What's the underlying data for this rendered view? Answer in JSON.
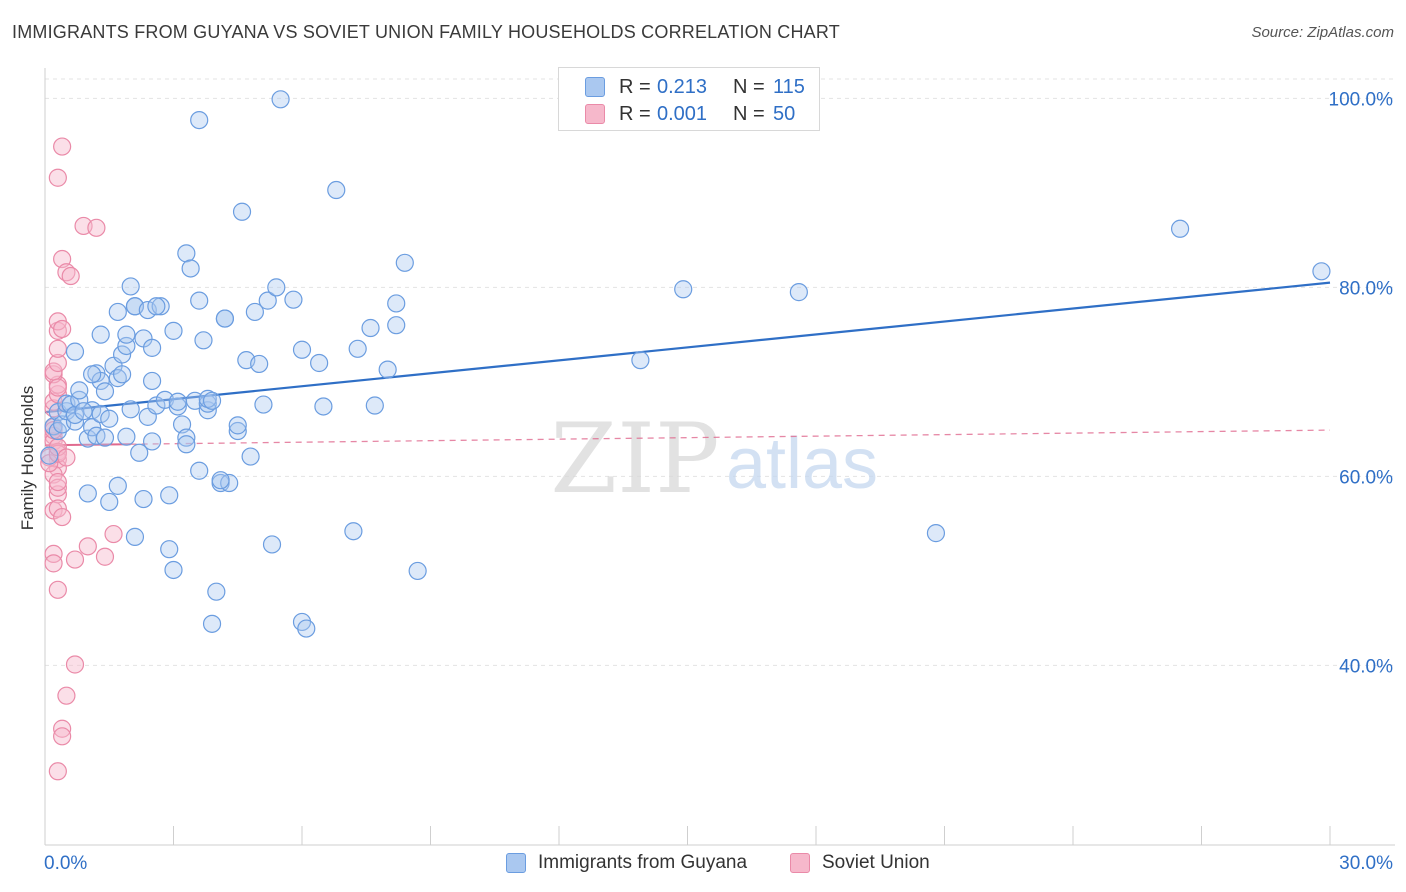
{
  "title": "IMMIGRANTS FROM GUYANA VS SOVIET UNION FAMILY HOUSEHOLDS CORRELATION CHART",
  "source": "Source: ZipAtlas.com",
  "watermark": {
    "zip": "ZIP",
    "atlas": "atlas"
  },
  "legend": {
    "r_label": "R =",
    "n_label": "N =",
    "series1": {
      "r": "0.213",
      "n": "115"
    },
    "series2": {
      "r": "0.001",
      "n": "50"
    }
  },
  "bottom_legend": {
    "series1": "Immigrants from Guyana",
    "series2": "Soviet Union"
  },
  "colors": {
    "series1_fill": "#aac8f0",
    "series1_stroke": "#6b9de0",
    "series1_line": "#2f6fc6",
    "series2_fill": "#f6b8cb",
    "series2_stroke": "#ea8aa8",
    "series2_line": "#e06a8f",
    "axis_text": "#2f6fc6",
    "grid": "#e3e3e3"
  },
  "chart_data": {
    "type": "scatter",
    "title": "IMMIGRANTS FROM GUYANA VS SOVIET UNION FAMILY HOUSEHOLDS CORRELATION CHART",
    "xlabel": "",
    "ylabel": "Family Households",
    "xlim": [
      0,
      30
    ],
    "ylim": [
      21,
      103
    ],
    "x_tick_labels": [
      "0.0%",
      "30.0%"
    ],
    "y_ticks": [
      40,
      60,
      80,
      100
    ],
    "y_tick_labels": [
      "40.0%",
      "60.0%",
      "80.0%",
      "100.0%"
    ],
    "grid": true,
    "legend_position": "top-center",
    "series": [
      {
        "name": "Immigrants from Guyana",
        "r": 0.213,
        "n": 115,
        "trend": {
          "x": [
            0,
            30
          ],
          "y": [
            66.8,
            80.5
          ],
          "style": "solid"
        },
        "points": [
          [
            0.1,
            62.2
          ],
          [
            0.2,
            65.3
          ],
          [
            0.3,
            66.8
          ],
          [
            0.3,
            64.8
          ],
          [
            0.4,
            65.5
          ],
          [
            0.5,
            66.9
          ],
          [
            0.5,
            67.7
          ],
          [
            0.6,
            67.6
          ],
          [
            0.7,
            65.8
          ],
          [
            0.7,
            66.5
          ],
          [
            0.8,
            68.1
          ],
          [
            0.8,
            69.1
          ],
          [
            0.7,
            73.2
          ],
          [
            1.0,
            64.0
          ],
          [
            1.0,
            58.2
          ],
          [
            1.1,
            65.2
          ],
          [
            1.1,
            67.0
          ],
          [
            1.2,
            64.3
          ],
          [
            1.2,
            70.9
          ],
          [
            1.3,
            70.1
          ],
          [
            1.3,
            66.6
          ],
          [
            1.3,
            75.0
          ],
          [
            1.4,
            69.0
          ],
          [
            1.5,
            66.1
          ],
          [
            1.5,
            57.3
          ],
          [
            1.6,
            71.7
          ],
          [
            1.7,
            70.4
          ],
          [
            1.7,
            77.4
          ],
          [
            1.7,
            59.0
          ],
          [
            1.8,
            72.9
          ],
          [
            1.8,
            70.8
          ],
          [
            1.9,
            73.8
          ],
          [
            1.9,
            75.0
          ],
          [
            1.9,
            64.2
          ],
          [
            2.0,
            80.1
          ],
          [
            2.0,
            67.1
          ],
          [
            2.1,
            78.0
          ],
          [
            2.1,
            53.6
          ],
          [
            2.1,
            78.0
          ],
          [
            2.2,
            62.5
          ],
          [
            2.3,
            57.6
          ],
          [
            2.3,
            74.6
          ],
          [
            2.4,
            77.6
          ],
          [
            2.4,
            66.3
          ],
          [
            2.5,
            70.1
          ],
          [
            2.5,
            73.6
          ],
          [
            2.5,
            63.7
          ],
          [
            2.6,
            67.5
          ],
          [
            2.7,
            78.0
          ],
          [
            2.8,
            68.1
          ],
          [
            2.9,
            58.0
          ],
          [
            2.9,
            52.3
          ],
          [
            3.0,
            50.1
          ],
          [
            3.0,
            75.4
          ],
          [
            3.1,
            67.4
          ],
          [
            3.1,
            67.9
          ],
          [
            3.2,
            65.5
          ],
          [
            3.3,
            64.1
          ],
          [
            3.3,
            63.4
          ],
          [
            3.3,
            83.6
          ],
          [
            3.4,
            82.0
          ],
          [
            3.5,
            68.0
          ],
          [
            3.6,
            78.6
          ],
          [
            3.6,
            60.6
          ],
          [
            3.6,
            97.7
          ],
          [
            3.7,
            74.4
          ],
          [
            3.8,
            67.0
          ],
          [
            3.8,
            67.7
          ],
          [
            3.8,
            68.2
          ],
          [
            3.9,
            44.4
          ],
          [
            4.0,
            47.8
          ],
          [
            4.1,
            59.3
          ],
          [
            4.2,
            76.7
          ],
          [
            4.2,
            76.7
          ],
          [
            4.3,
            59.3
          ],
          [
            4.5,
            64.8
          ],
          [
            4.5,
            65.4
          ],
          [
            4.6,
            88.0
          ],
          [
            4.7,
            72.3
          ],
          [
            4.8,
            62.1
          ],
          [
            4.9,
            77.4
          ],
          [
            5.0,
            71.9
          ],
          [
            5.1,
            67.6
          ],
          [
            5.2,
            78.6
          ],
          [
            5.3,
            52.8
          ],
          [
            5.4,
            80.0
          ],
          [
            5.5,
            99.9
          ],
          [
            5.8,
            78.7
          ],
          [
            6.0,
            44.6
          ],
          [
            6.0,
            73.4
          ],
          [
            6.1,
            43.9
          ],
          [
            6.4,
            72.0
          ],
          [
            6.5,
            67.4
          ],
          [
            6.8,
            90.3
          ],
          [
            7.2,
            54.2
          ],
          [
            7.3,
            73.5
          ],
          [
            7.6,
            75.7
          ],
          [
            7.7,
            67.5
          ],
          [
            8.0,
            71.3
          ],
          [
            8.2,
            76.0
          ],
          [
            8.2,
            78.3
          ],
          [
            8.4,
            82.6
          ],
          [
            8.7,
            50.0
          ],
          [
            13.9,
            72.3
          ],
          [
            14.9,
            79.8
          ],
          [
            17.6,
            79.5
          ],
          [
            20.8,
            54.0
          ],
          [
            26.5,
            86.2
          ],
          [
            29.8,
            81.7
          ],
          [
            1.4,
            64.1
          ],
          [
            0.9,
            66.9
          ],
          [
            2.6,
            78.0
          ],
          [
            4.1,
            59.6
          ],
          [
            1.1,
            70.8
          ],
          [
            3.9,
            68.0
          ]
        ]
      },
      {
        "name": "Soviet Union",
        "r": 0.001,
        "n": 50,
        "trend": {
          "x": [
            0,
            30
          ],
          "y": [
            63.3,
            64.9
          ],
          "style": "dashed",
          "solid_until": 2.0
        },
        "points": [
          [
            0.2,
            65.2
          ],
          [
            0.2,
            64.3
          ],
          [
            0.2,
            63.7
          ],
          [
            0.3,
            62.6
          ],
          [
            0.3,
            61.8
          ],
          [
            0.3,
            60.9
          ],
          [
            0.2,
            60.2
          ],
          [
            0.2,
            56.4
          ],
          [
            0.1,
            62.0
          ],
          [
            0.1,
            61.4
          ],
          [
            0.2,
            67.2
          ],
          [
            0.2,
            67.9
          ],
          [
            0.3,
            68.7
          ],
          [
            0.3,
            69.7
          ],
          [
            0.2,
            70.8
          ],
          [
            0.2,
            71.1
          ],
          [
            0.3,
            69.4
          ],
          [
            0.3,
            72.0
          ],
          [
            0.3,
            73.5
          ],
          [
            0.3,
            75.4
          ],
          [
            0.3,
            76.4
          ],
          [
            0.4,
            75.6
          ],
          [
            0.3,
            48.0
          ],
          [
            0.2,
            51.8
          ],
          [
            0.2,
            50.8
          ],
          [
            0.3,
            58.1
          ],
          [
            0.3,
            58.8
          ],
          [
            0.3,
            56.6
          ],
          [
            0.4,
            55.7
          ],
          [
            0.3,
            59.4
          ],
          [
            0.4,
            83.0
          ],
          [
            0.5,
            81.6
          ],
          [
            0.6,
            81.2
          ],
          [
            0.9,
            86.5
          ],
          [
            1.2,
            86.3
          ],
          [
            0.3,
            91.6
          ],
          [
            0.4,
            94.9
          ],
          [
            0.7,
            51.2
          ],
          [
            1.0,
            52.6
          ],
          [
            1.4,
            51.5
          ],
          [
            1.6,
            53.9
          ],
          [
            0.7,
            40.1
          ],
          [
            0.5,
            36.8
          ],
          [
            0.4,
            33.3
          ],
          [
            0.4,
            32.5
          ],
          [
            0.3,
            28.8
          ],
          [
            0.3,
            62.4
          ],
          [
            0.3,
            63.1
          ],
          [
            0.5,
            62.0
          ],
          [
            0.2,
            64.9
          ]
        ]
      }
    ]
  }
}
